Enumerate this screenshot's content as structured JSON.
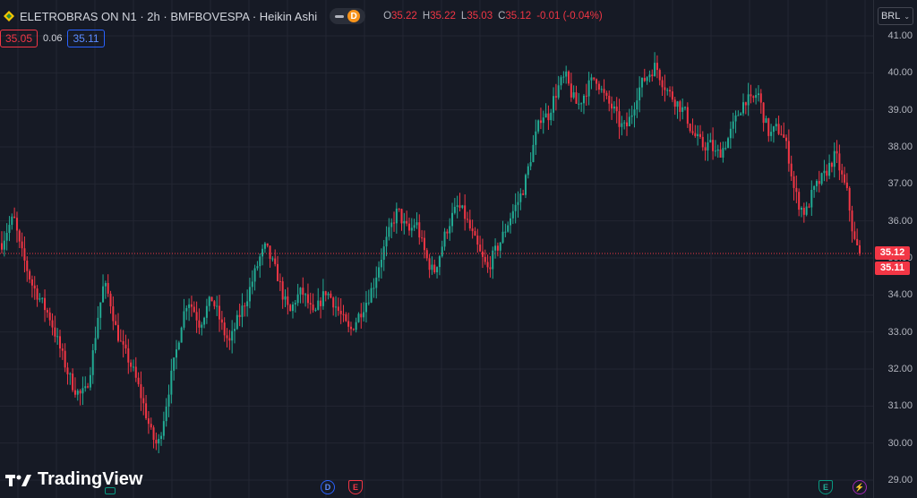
{
  "legend": {
    "title": "ELETROBRAS ON N1 · 2h · BMFBOVESPA · Heikin Ashi",
    "badge": "D",
    "ohlc": [
      {
        "k": "O",
        "v": "35.22"
      },
      {
        "k": "H",
        "v": "35.22"
      },
      {
        "k": "L",
        "v": "35.03"
      },
      {
        "k": "C",
        "v": "35.12"
      }
    ],
    "change": "-0.01 (-0.04%)"
  },
  "trade": {
    "sell": "35.05",
    "spread": "0.06",
    "buy": "35.11"
  },
  "currency": "BRL",
  "price_axis": {
    "ticks": [
      "41.00",
      "40.00",
      "39.00",
      "38.00",
      "37.00",
      "36.00",
      "35.00",
      "34.00",
      "33.00",
      "32.00",
      "31.00",
      "30.00",
      "29.00"
    ],
    "last_price": "35.12",
    "last_price_2": "35.11"
  },
  "branding": {
    "logo_text": "TradingView"
  },
  "markers": {
    "dividend": "D",
    "earnings": "E",
    "earnings_upcoming": "E"
  },
  "colors": {
    "up": "#22ab94",
    "down": "#f23645",
    "background": "#161a25",
    "grid": "#232632"
  },
  "chart_data": {
    "type": "candlestick",
    "style": "Heikin Ashi",
    "ylim": [
      29.0,
      41.2
    ],
    "grid": true,
    "close_path": [
      35.4,
      35.8,
      36.1,
      35.3,
      34.8,
      34.3,
      34.0,
      33.7,
      33.4,
      32.9,
      32.4,
      31.9,
      31.5,
      31.3,
      31.4,
      32.2,
      33.4,
      34.3,
      33.9,
      33.1,
      32.6,
      32.3,
      31.9,
      31.4,
      30.8,
      30.2,
      29.9,
      30.7,
      31.6,
      32.4,
      33.3,
      33.9,
      33.6,
      33.2,
      33.6,
      33.9,
      33.5,
      33.0,
      32.7,
      33.2,
      33.6,
      34.0,
      34.5,
      35.0,
      35.3,
      34.9,
      34.5,
      33.9,
      33.5,
      33.9,
      34.1,
      33.8,
      33.4,
      33.8,
      34.1,
      33.9,
      33.6,
      33.3,
      33.0,
      33.3,
      33.6,
      33.9,
      34.3,
      34.9,
      35.4,
      35.9,
      36.3,
      35.9,
      35.7,
      36.0,
      35.4,
      34.9,
      34.6,
      35.1,
      35.7,
      36.1,
      36.4,
      36.2,
      35.8,
      35.4,
      35.0,
      34.7,
      35.1,
      35.4,
      35.8,
      36.2,
      36.5,
      36.9,
      37.6,
      38.3,
      38.9,
      38.8,
      39.3,
      39.7,
      39.9,
      39.4,
      39.1,
      39.4,
      39.7,
      39.9,
      39.5,
      39.2,
      39.0,
      38.6,
      38.5,
      38.9,
      39.5,
      39.8,
      40.0,
      40.2,
      39.8,
      39.5,
      39.3,
      39.1,
      38.9,
      38.4,
      38.2,
      38.0,
      38.1,
      37.8,
      37.9,
      38.2,
      38.6,
      39.0,
      39.3,
      39.2,
      39.5,
      38.8,
      38.3,
      38.5,
      38.4,
      37.9,
      36.9,
      36.4,
      36.2,
      36.7,
      37.0,
      37.2,
      37.5,
      37.8,
      37.2,
      36.7,
      35.5,
      35.12
    ],
    "last_close": 35.12
  }
}
